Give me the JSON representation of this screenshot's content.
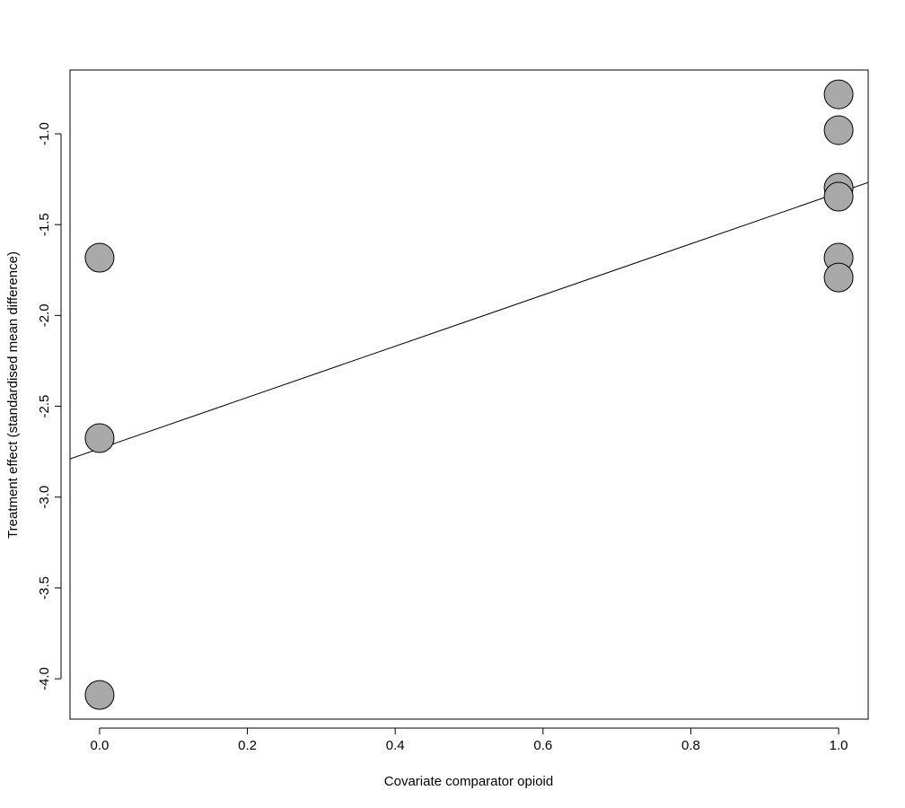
{
  "chart_data": {
    "type": "scatter",
    "x_label": "Covariate comparator opioid",
    "y_label": "Treatment effect (standardised mean difference)",
    "x": [
      0,
      0,
      0,
      1,
      1,
      1,
      1,
      1,
      1
    ],
    "y": [
      -1.682,
      -2.675,
      -4.089,
      -0.783,
      -0.98,
      -1.297,
      -1.346,
      -1.682,
      -1.791
    ],
    "color": "#a9a9a9",
    "regression": {
      "intercept": -2.733,
      "slope": 1.409
    },
    "xlim": [
      -0.04,
      1.04
    ],
    "ylim": [
      -4.222,
      -0.649
    ],
    "xticks": [
      {
        "value": 0,
        "label": "0.0"
      },
      0.2,
      0.4,
      0.6,
      0.8,
      {
        "value": 1,
        "label": "1.0"
      }
    ],
    "yticks": [
      {
        "value": -1,
        "label": "-1.0"
      },
      -1.5,
      {
        "value": -2,
        "label": "-2.0"
      },
      -2.5,
      {
        "value": -3,
        "label": "-3.0"
      },
      -3.5,
      {
        "value": -4,
        "label": "-4.0"
      }
    ]
  }
}
